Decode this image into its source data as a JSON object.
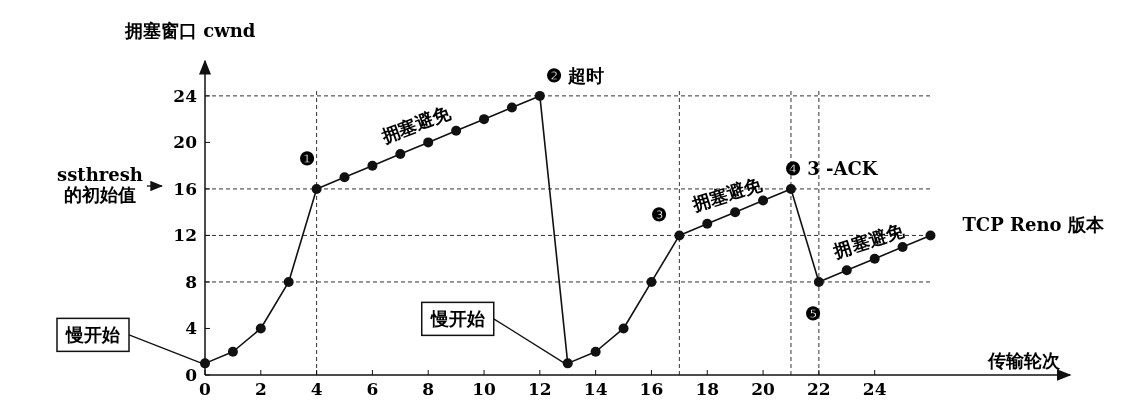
{
  "chart_data": {
    "type": "line",
    "xlabel": "传输轮次",
    "ylabel": "拥塞窗口 cwnd",
    "x": [
      0,
      1,
      2,
      3,
      4,
      5,
      6,
      7,
      8,
      9,
      10,
      11,
      12,
      13,
      14,
      15,
      16,
      17,
      18,
      19,
      20,
      21,
      22,
      23,
      24,
      25,
      26
    ],
    "series": [
      {
        "color": "#111111",
        "values": [
          1,
          2,
          4,
          8,
          16,
          17,
          18,
          19,
          20,
          21,
          22,
          23,
          24,
          1,
          2,
          4,
          8,
          12,
          13,
          14,
          15,
          16,
          8,
          9,
          10,
          11,
          12
        ]
      }
    ],
    "xlim": [
      0,
      31
    ],
    "ylim": [
      0,
      27
    ],
    "xticks": [
      0,
      2,
      4,
      6,
      8,
      10,
      12,
      14,
      16,
      18,
      20,
      22,
      24
    ],
    "yticks": [
      0,
      4,
      8,
      12,
      16,
      20,
      24
    ],
    "marker": "circle",
    "line_style": "solid",
    "grid": false,
    "ref_lines": [
      {
        "axis": "y",
        "value": 24,
        "line_style": "dashed"
      },
      {
        "axis": "y",
        "value": 16,
        "line_style": "dashed"
      },
      {
        "axis": "y",
        "value": 12,
        "line_style": "dashed"
      },
      {
        "axis": "y",
        "value": 8,
        "line_style": "dashed"
      },
      {
        "axis": "x",
        "value": 4,
        "line_style": "dashed"
      },
      {
        "axis": "x",
        "value": 17,
        "line_style": "dashed"
      },
      {
        "axis": "x",
        "value": 21,
        "line_style": "dashed"
      },
      {
        "axis": "x",
        "value": 22,
        "line_style": "dashed"
      }
    ],
    "annotations": [
      "ssthresh\n的初始值",
      {
        "text": "❶",
        "x": 4,
        "y": 16
      },
      {
        "text": "❷ 超时",
        "x": 12,
        "y": 24
      },
      {
        "text": "❸",
        "x": 17,
        "y": 12
      },
      {
        "text": "❹ 3 -ACK",
        "x": 21,
        "y": 16
      },
      {
        "text": "❺",
        "x": 22,
        "y": 8
      },
      {
        "text": "TCP Reno 版本",
        "x": 26,
        "y": 12
      },
      {
        "text": "慢开始",
        "x": 0,
        "y": 1
      },
      {
        "text": "慢开始",
        "x": 13,
        "y": 1
      },
      {
        "text": "拥塞避免",
        "x": 8,
        "y": 20
      },
      {
        "text": "拥塞避免",
        "x": 19,
        "y": 14
      },
      {
        "text": "拥塞避免",
        "x": 24,
        "y": 10
      }
    ]
  }
}
